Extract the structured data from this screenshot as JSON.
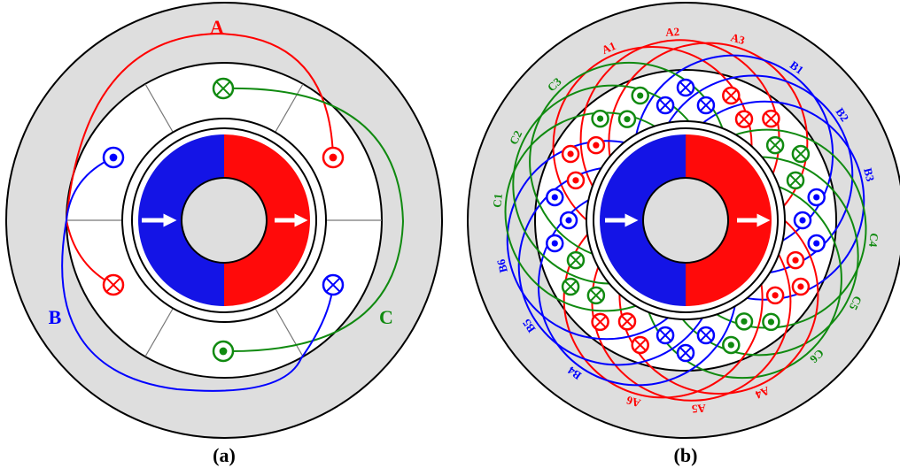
{
  "panel_a": {
    "labels": {
      "A": "A",
      "B": "B",
      "C": "C"
    },
    "caption": "(a)"
  },
  "panel_b": {
    "labels": [
      "A1",
      "A2",
      "A3",
      "B1",
      "B2",
      "B3",
      "C4",
      "C5",
      "C6",
      "A4",
      "A5",
      "A6",
      "B4",
      "B5",
      "B6",
      "C1",
      "C2",
      "C3"
    ],
    "caption": "(b)"
  }
}
